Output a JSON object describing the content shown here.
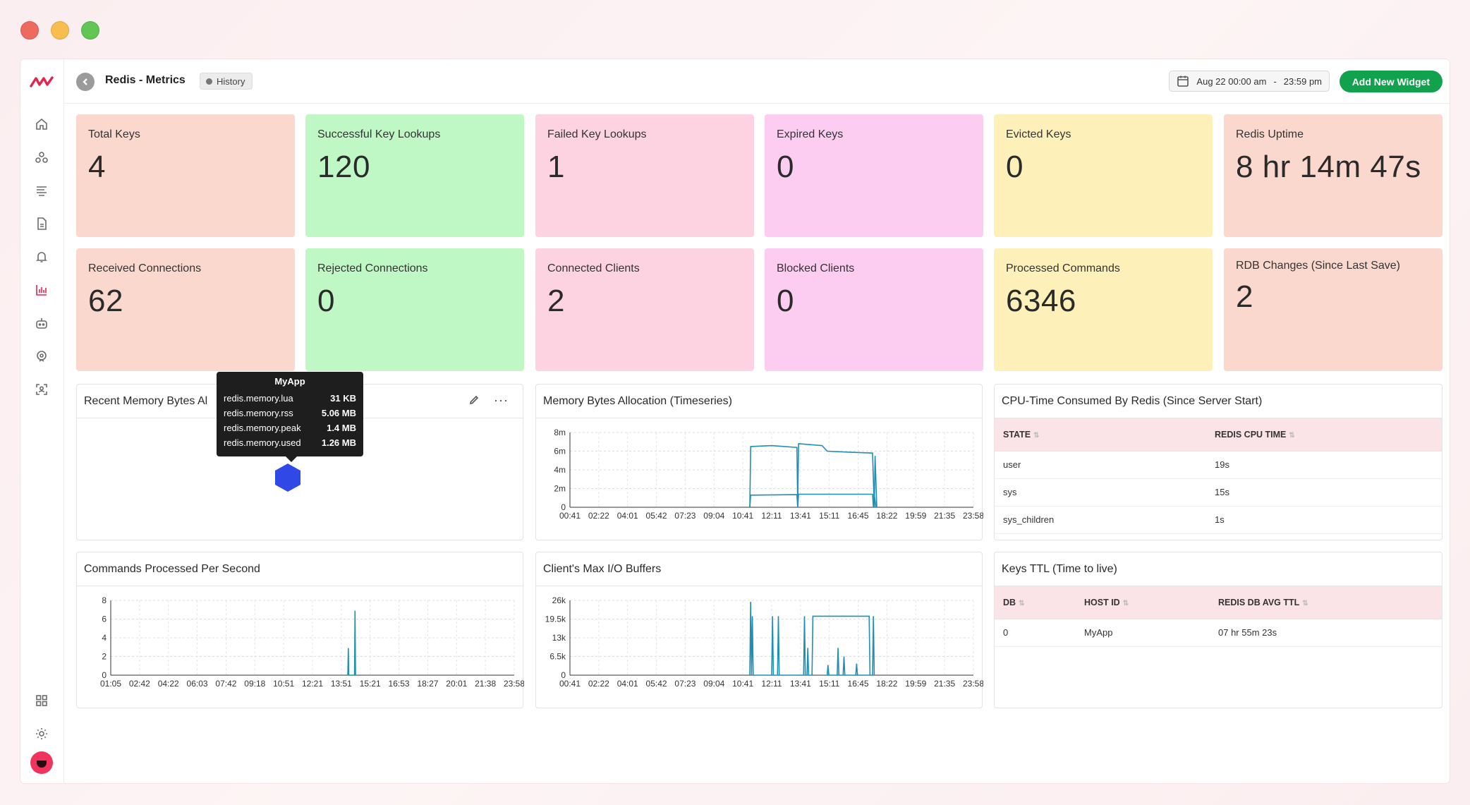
{
  "header": {
    "title": "Redis - Metrics",
    "history_label": "History",
    "date_start": "Aug 22 00:00 am",
    "date_sep": "-",
    "date_end": "23:59 pm",
    "add_widget_label": "Add New Widget"
  },
  "colors": {
    "accent": "#e0264f",
    "primary_button": "#12a14c",
    "series_line": "#1f8fb3"
  },
  "sidebar": {
    "items": [
      "home-icon",
      "infrastructure-icon",
      "logs-icon",
      "document-icon",
      "alert-bell-icon",
      "dashboard-chart-icon",
      "bot-icon",
      "support-icon",
      "user-scan-icon",
      "apps-grid-icon",
      "settings-icon"
    ],
    "active": "dashboard-chart-icon"
  },
  "cards": [
    {
      "label": "Total Keys",
      "value": "4"
    },
    {
      "label": "Successful Key Lookups",
      "value": "120"
    },
    {
      "label": "Failed Key Lookups",
      "value": "1"
    },
    {
      "label": "Expired Keys",
      "value": "0"
    },
    {
      "label": "Evicted Keys",
      "value": "0"
    },
    {
      "label": "Redis Uptime",
      "value": "8 hr 14m 47s"
    },
    {
      "label": "Received Connections",
      "value": "62"
    },
    {
      "label": "Rejected Connections",
      "value": "0"
    },
    {
      "label": "Connected Clients",
      "value": "2"
    },
    {
      "label": "Blocked Clients",
      "value": "0"
    },
    {
      "label": "Processed Commands",
      "value": "6346"
    },
    {
      "label": "RDB Changes (Since Last Save)",
      "value": "2"
    }
  ],
  "panels": {
    "recent_memory": {
      "title": "Recent Memory Bytes Al"
    },
    "memory_timeseries": {
      "title": "Memory Bytes Allocation (Timeseries)"
    },
    "cpu_time": {
      "title": "CPU-Time Consumed By Redis (Since Server Start)",
      "columns": [
        "STATE",
        "REDIS CPU TIME"
      ],
      "rows": [
        [
          "user",
          "19s"
        ],
        [
          "sys",
          "15s"
        ],
        [
          "sys_children",
          "1s"
        ]
      ]
    },
    "commands_per_sec": {
      "title": "Commands Processed Per Second"
    },
    "io_buffers": {
      "title": "Client's Max I/O Buffers"
    },
    "keys_ttl": {
      "title": "Keys TTL (Time to live)",
      "columns": [
        "DB",
        "HOST ID",
        "REDIS DB AVG TTL"
      ],
      "rows": [
        [
          "0",
          "MyApp",
          "07 hr 55m 23s"
        ]
      ]
    }
  },
  "tooltip": {
    "title": "MyApp",
    "rows": [
      {
        "name": "redis.memory.lua",
        "value": "31 KB"
      },
      {
        "name": "redis.memory.rss",
        "value": "5.06 MB"
      },
      {
        "name": "redis.memory.peak",
        "value": "1.4 MB"
      },
      {
        "name": "redis.memory.used",
        "value": "1.26 MB"
      }
    ]
  },
  "chart_data": [
    {
      "type": "line",
      "title": "Memory Bytes Allocation (Timeseries)",
      "x": [
        "00:41",
        "02:22",
        "04:01",
        "05:42",
        "07:23",
        "09:04",
        "10:41",
        "12:11",
        "13:41",
        "15:11",
        "16:45",
        "18:22",
        "19:59",
        "21:35",
        "23:58"
      ],
      "yticks": [
        "0",
        "2m",
        "4m",
        "6m",
        "8m"
      ],
      "ylim": [
        0,
        8000000
      ],
      "series": [
        {
          "points": [
            [
              10.7,
              0
            ],
            [
              10.75,
              6.5
            ],
            [
              12.0,
              6.6
            ],
            [
              13.5,
              6.4
            ],
            [
              13.55,
              0
            ],
            [
              13.6,
              6.8
            ],
            [
              15.0,
              6.6
            ],
            [
              15.3,
              6.0
            ],
            [
              16.5,
              5.9
            ],
            [
              18.0,
              5.8
            ],
            [
              18.1,
              0
            ],
            [
              18.15,
              5.5
            ],
            [
              18.25,
              0
            ]
          ]
        },
        {
          "points": [
            [
              10.7,
              0
            ],
            [
              10.75,
              1.3
            ],
            [
              13.5,
              1.35
            ],
            [
              13.55,
              0
            ],
            [
              13.6,
              1.4
            ],
            [
              18.0,
              1.4
            ],
            [
              18.05,
              0
            ],
            [
              18.1,
              1.4
            ],
            [
              18.2,
              0
            ]
          ]
        }
      ]
    },
    {
      "type": "line",
      "title": "Commands Processed Per Second",
      "x": [
        "01:05",
        "02:42",
        "04:22",
        "06:03",
        "07:42",
        "09:18",
        "10:51",
        "12:21",
        "13:51",
        "15:21",
        "16:53",
        "18:27",
        "20:01",
        "21:38",
        "23:58"
      ],
      "yticks": [
        "0",
        "2",
        "4",
        "6",
        "8"
      ],
      "ylim": [
        0,
        8
      ],
      "series": [
        {
          "points": [
            [
              14.1,
              0
            ],
            [
              14.13,
              2.9
            ],
            [
              14.16,
              0
            ],
            [
              14.5,
              0
            ],
            [
              14.53,
              6.9
            ],
            [
              14.56,
              0
            ]
          ]
        }
      ]
    },
    {
      "type": "line",
      "title": "Client's Max I/O Buffers",
      "x": [
        "00:41",
        "02:22",
        "04:01",
        "05:42",
        "07:23",
        "09:04",
        "10:41",
        "12:11",
        "13:41",
        "15:11",
        "16:45",
        "18:22",
        "19:59",
        "21:35",
        "23:58"
      ],
      "yticks": [
        "0",
        "6.5k",
        "13k",
        "19.5k",
        "26k"
      ],
      "ylim": [
        0,
        26000
      ],
      "series": [
        {
          "points": [
            [
              10.7,
              0
            ],
            [
              10.75,
              25.5
            ],
            [
              10.8,
              0
            ],
            [
              10.85,
              20.5
            ],
            [
              10.9,
              0
            ],
            [
              12.0,
              0
            ],
            [
              12.05,
              20.5
            ],
            [
              12.1,
              0
            ],
            [
              12.35,
              0
            ],
            [
              12.4,
              20.5
            ],
            [
              12.45,
              0
            ],
            [
              13.9,
              0
            ],
            [
              13.95,
              20.5
            ],
            [
              14.0,
              0
            ],
            [
              14.1,
              0
            ],
            [
              14.15,
              9.5
            ],
            [
              14.2,
              0
            ],
            [
              14.4,
              0
            ],
            [
              14.45,
              20.5
            ],
            [
              17.8,
              20.5
            ],
            [
              17.85,
              0
            ],
            [
              15.3,
              0
            ],
            [
              15.35,
              3.5
            ],
            [
              15.4,
              0
            ],
            [
              15.9,
              0
            ],
            [
              15.95,
              9.5
            ],
            [
              16.0,
              0
            ],
            [
              16.25,
              0
            ],
            [
              16.3,
              6.5
            ],
            [
              16.35,
              0
            ],
            [
              17.0,
              0
            ],
            [
              17.05,
              4.0
            ],
            [
              17.1,
              0
            ],
            [
              18.0,
              0
            ],
            [
              18.05,
              20.5
            ],
            [
              18.1,
              0
            ]
          ]
        }
      ]
    }
  ]
}
